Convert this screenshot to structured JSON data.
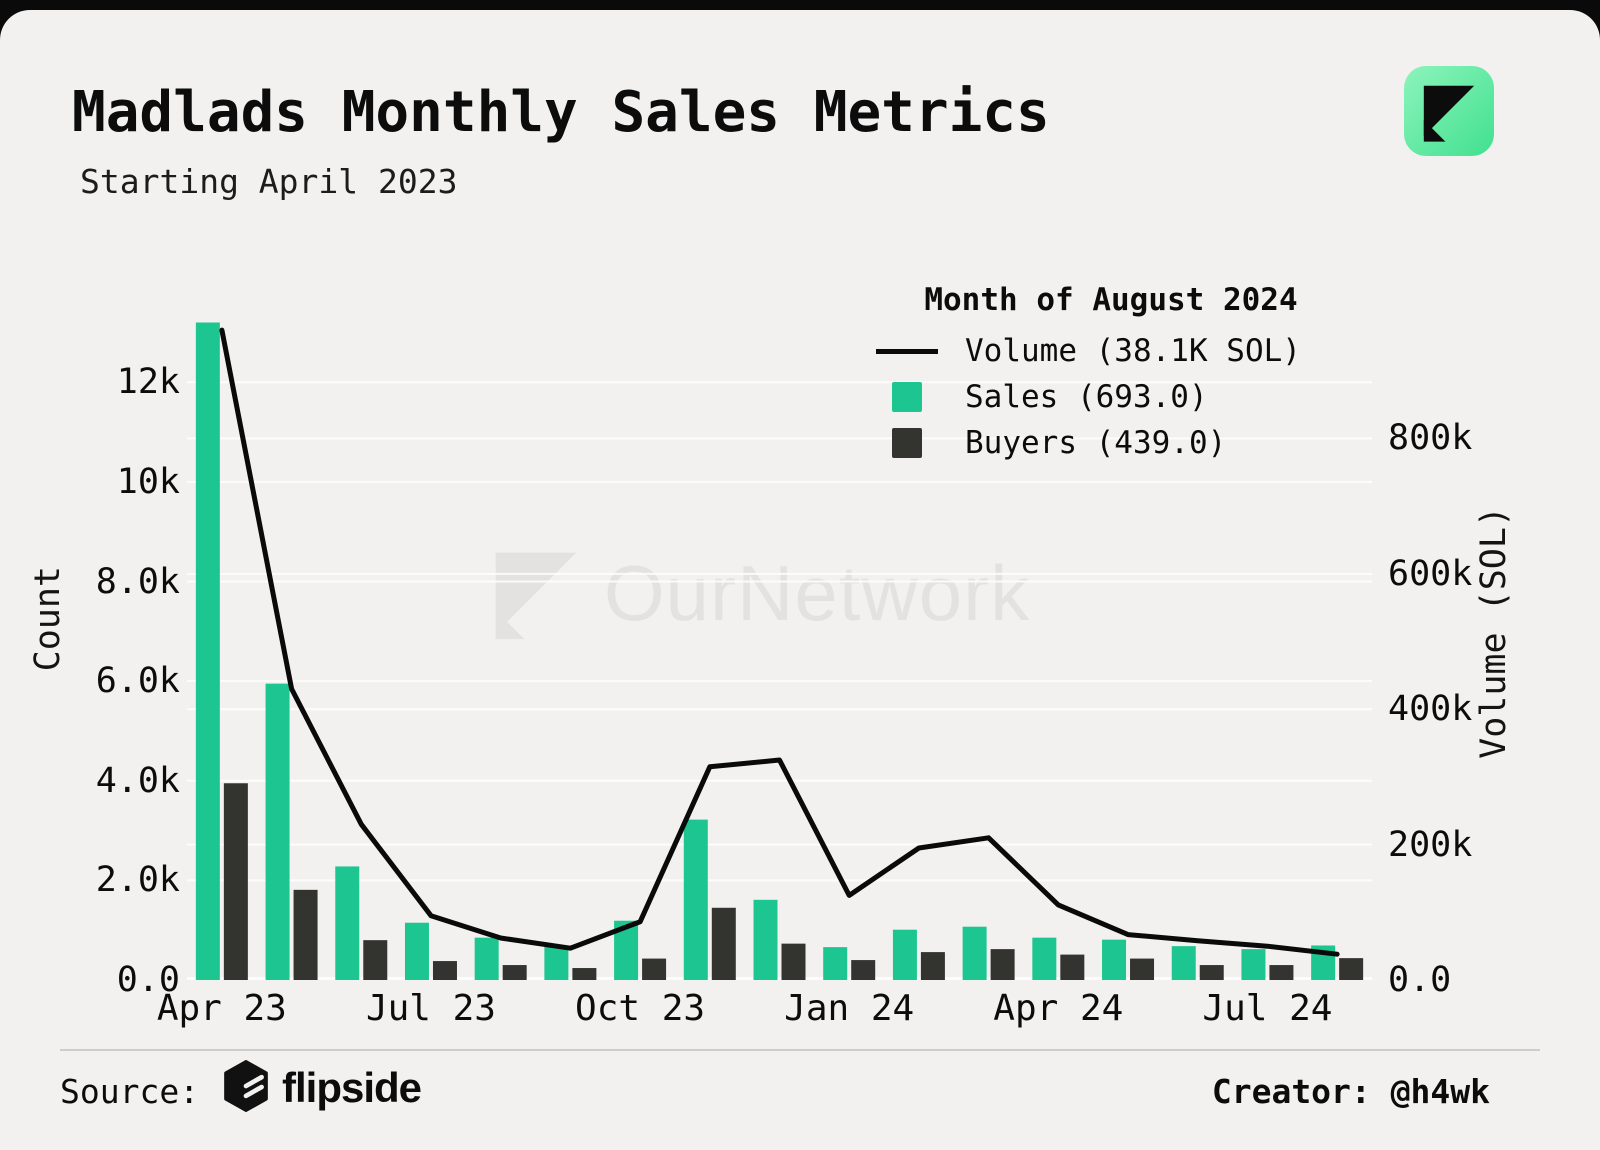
{
  "header": {
    "title": "Madlads Monthly Sales Metrics",
    "subtitle": "Starting April 2023"
  },
  "legend": {
    "title": "Month of August 2024",
    "items": [
      {
        "swatch": "line",
        "label": "Volume (38.1K SOL)"
      },
      {
        "swatch": "sales",
        "label": "Sales (693.0)"
      },
      {
        "swatch": "buyers",
        "label": "Buyers (439.0)"
      }
    ]
  },
  "watermark": {
    "text": "OurNetwork"
  },
  "footer": {
    "source_label": "Source:",
    "source_name": "flipside",
    "creator": "Creator: @h4wk"
  },
  "colors": {
    "background": "#f2f1ef",
    "sales_green": "#1dc690",
    "buyers_dark": "#333330",
    "line_black": "#0a0a0a",
    "gridline": "#ffffff",
    "watermark_gray": "#e3e2e0",
    "icon_green": "#5fe9a0"
  },
  "chart_data": {
    "type": "bar",
    "subtype": "grouped bars with overlaid line on secondary axis",
    "categories": [
      "Apr 23",
      "May 23",
      "Jun 23",
      "Jul 23",
      "Aug 23",
      "Sep 23",
      "Oct 23",
      "Nov 23",
      "Dec 23",
      "Jan 24",
      "Feb 24",
      "Mar 24",
      "Apr 24",
      "May 24",
      "Jun 24",
      "Jul 24",
      "Aug 24"
    ],
    "series": [
      {
        "name": "Sales",
        "type": "bar",
        "axis": "left",
        "color": "#1dc690",
        "values": [
          13200,
          5950,
          2280,
          1150,
          850,
          680,
          1190,
          3220,
          1610,
          660,
          1010,
          1070,
          850,
          810,
          680,
          620,
          693
        ]
      },
      {
        "name": "Buyers",
        "type": "bar",
        "axis": "left",
        "color": "#333330",
        "values": [
          3950,
          1810,
          800,
          380,
          300,
          240,
          430,
          1450,
          730,
          400,
          560,
          620,
          510,
          430,
          300,
          300,
          439
        ]
      },
      {
        "name": "Volume (SOL)",
        "type": "line",
        "axis": "right",
        "color": "#0a0a0a",
        "values": [
          960000,
          430000,
          230000,
          95000,
          62000,
          47000,
          86000,
          315000,
          325000,
          125000,
          195000,
          210000,
          111000,
          67000,
          58000,
          50000,
          38100
        ]
      }
    ],
    "left_axis": {
      "label": "Count",
      "ylim": [
        0,
        13210
      ],
      "ticks": [
        {
          "v": 0,
          "t": "0.0"
        },
        {
          "v": 2000,
          "t": "2.0k"
        },
        {
          "v": 4000,
          "t": "4.0k"
        },
        {
          "v": 6000,
          "t": "6.0k"
        },
        {
          "v": 8000,
          "t": "8.0k"
        },
        {
          "v": 10000,
          "t": "10k"
        },
        {
          "v": 12000,
          "t": "12k"
        }
      ]
    },
    "right_axis": {
      "label": "Volume (SOL)",
      "ylim": [
        0,
        972000
      ],
      "ticks": [
        {
          "v": 0,
          "t": "0.0"
        },
        {
          "v": 200000,
          "t": "200k"
        },
        {
          "v": 400000,
          "t": "400k"
        },
        {
          "v": 600000,
          "t": "600k"
        },
        {
          "v": 800000,
          "t": "800k"
        }
      ]
    },
    "x_ticks": [
      {
        "index": 0,
        "label": "Apr 23"
      },
      {
        "index": 3,
        "label": "Jul 23"
      },
      {
        "index": 6,
        "label": "Oct 23"
      },
      {
        "index": 9,
        "label": "Jan 24"
      },
      {
        "index": 12,
        "label": "Apr 24"
      },
      {
        "index": 15,
        "label": "Jul 24"
      }
    ],
    "grid": true,
    "legend_position": "top-right"
  }
}
